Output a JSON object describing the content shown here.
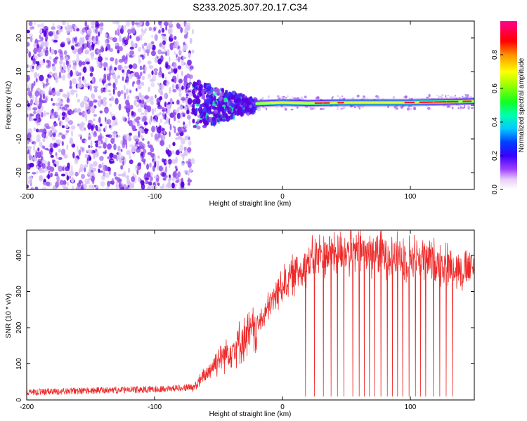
{
  "title": "S233.2025.307.20.17.C34",
  "colors": {
    "snr_line": "#ee2a2a",
    "scatter_dark": "#5a00e0",
    "scatter_mid": "#9a55ee",
    "scatter_light": "#d7c2f6",
    "ridge_core": "#ff2020",
    "ridge_inner": "#d8ff30",
    "ridge_outer": "#22e8b0",
    "ridge_halo": "#3a2bff"
  },
  "chart_data": [
    {
      "type": "heatmap",
      "name": "spectrogram",
      "xlabel": "Height of straight line (km)",
      "ylabel": "Frequency (Hz)",
      "xlim": [
        -200,
        150
      ],
      "ylim": [
        -25,
        25
      ],
      "xticks": [
        -200,
        -100,
        0,
        100
      ],
      "yticks": [
        -20,
        -10,
        0,
        10,
        20
      ],
      "xtick_labels": [
        "-200",
        "-100",
        "0",
        "100"
      ],
      "ytick_labels": [
        "-20",
        "-10",
        "0",
        "10",
        "20"
      ],
      "colorbar": {
        "label": "Normalized spectral amplitude",
        "range": [
          0,
          1
        ],
        "ticks": [
          0.0,
          0.2,
          0.4,
          0.6,
          0.8
        ],
        "tick_labels": [
          "0.0",
          "0.2",
          "0.4",
          "0.6",
          "0.8"
        ]
      },
      "features": {
        "noise_region_x": [
          -200,
          -70
        ],
        "transition_region_x": [
          -70,
          -20
        ],
        "signal_region_x": [
          -20,
          150
        ],
        "signal_frequency_hz": [
          [
            -20,
            0.5
          ],
          [
            0,
            0.8
          ],
          [
            20,
            0.6
          ],
          [
            50,
            0.8
          ],
          [
            100,
            0.8
          ],
          [
            150,
            1.2
          ]
        ],
        "peak_amplitude": 0.95
      }
    },
    {
      "type": "line",
      "name": "snr",
      "xlabel": "Height of straight line (km)",
      "ylabel": "SNR (10 * v/v)",
      "xlim": [
        -200,
        150
      ],
      "ylim": [
        0,
        470
      ],
      "xticks": [
        -200,
        -100,
        0,
        100
      ],
      "yticks": [
        0,
        100,
        200,
        300,
        400
      ],
      "xtick_labels": [
        "-200",
        "-100",
        "0",
        "100"
      ],
      "ytick_labels": [
        "0",
        "100",
        "200",
        "300",
        "400"
      ],
      "series": [
        {
          "name": "SNR",
          "trend": [
            [
              -200,
              18
            ],
            [
              -150,
              22
            ],
            [
              -100,
              26
            ],
            [
              -70,
              32
            ],
            [
              -60,
              70
            ],
            [
              -50,
              115
            ],
            [
              -40,
              140
            ],
            [
              -30,
              170
            ],
            [
              -20,
              200
            ],
            [
              -10,
              260
            ],
            [
              0,
              320
            ],
            [
              10,
              350
            ],
            [
              20,
              380
            ],
            [
              30,
              400
            ],
            [
              40,
              410
            ],
            [
              60,
              410
            ],
            [
              80,
              405
            ],
            [
              100,
              395
            ],
            [
              120,
              385
            ],
            [
              140,
              360
            ],
            [
              150,
              360
            ]
          ],
          "dropouts_x": [
            18,
            25,
            32,
            38,
            43,
            48,
            55,
            60,
            64,
            68,
            72,
            77,
            82,
            86,
            90,
            94,
            99,
            104,
            108,
            112,
            118,
            123,
            128,
            133
          ],
          "dropout_value": 10
        }
      ]
    }
  ]
}
